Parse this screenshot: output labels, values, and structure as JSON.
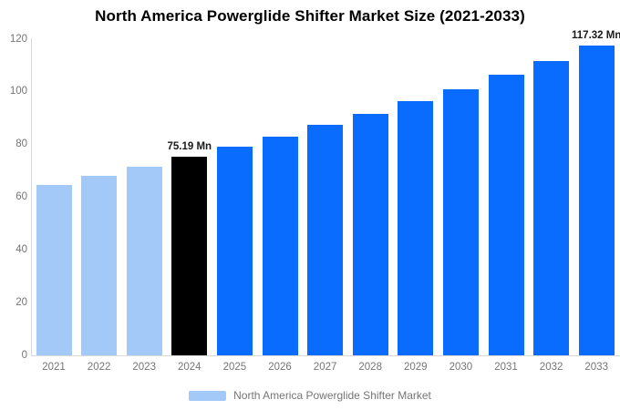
{
  "chart_data": {
    "type": "bar",
    "title": "North America Powerglide Shifter Market Size (2021-2033)",
    "categories": [
      "2021",
      "2022",
      "2023",
      "2024",
      "2025",
      "2026",
      "2027",
      "2028",
      "2029",
      "2030",
      "2031",
      "2032",
      "2033"
    ],
    "series": [
      {
        "name": "North America Powerglide Shifter Market",
        "values": [
          64.5,
          67.9,
          71.4,
          75.19,
          79.0,
          83.0,
          87.2,
          91.5,
          96.2,
          101.0,
          106.2,
          111.5,
          117.32
        ]
      }
    ],
    "xlabel": "",
    "ylabel": "",
    "ylim": [
      0,
      120
    ],
    "yticks": [
      0,
      20,
      40,
      60,
      80,
      100,
      120
    ],
    "grid": false,
    "annotations": [
      {
        "category": "2024",
        "text": "75.19 Mn"
      },
      {
        "category": "2033",
        "text": "117.32 Mn"
      }
    ],
    "bar_colors": [
      "#A2C9F8",
      "#A2C9F8",
      "#A2C9F8",
      "#000000",
      "#0A6CFF",
      "#0A6CFF",
      "#0A6CFF",
      "#0A6CFF",
      "#0A6CFF",
      "#0A6CFF",
      "#0A6CFF",
      "#0A6CFF",
      "#0A6CFF"
    ],
    "colors": {
      "historical": "#A2C9F8",
      "base_year": "#000000",
      "forecast": "#0A6CFF",
      "title_text": "#000000",
      "axis_text": "#757575",
      "annotation_text": "#1a1a1a",
      "axis_line": "#d9d9d9",
      "background": "#ffffff"
    },
    "legend": {
      "position": "bottom",
      "label": "North America Powerglide Shifter Market",
      "swatch_color": "#A2C9F8"
    }
  }
}
